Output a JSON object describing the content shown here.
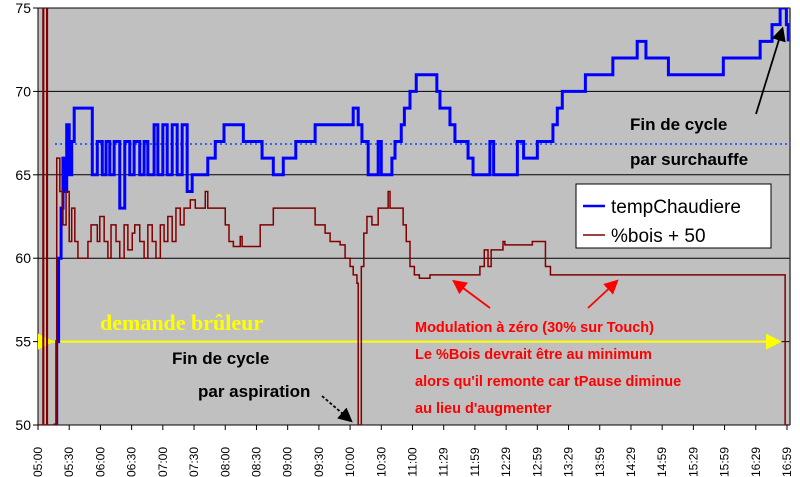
{
  "chart_data": {
    "type": "line",
    "title": "",
    "xlabel": "",
    "ylabel": "",
    "xlim": [
      5.0,
      17.0
    ],
    "ylim": [
      50,
      75
    ],
    "yticks": [
      50,
      55,
      60,
      65,
      70,
      75
    ],
    "xtick_labels": [
      "05:00",
      "05:30",
      "06:00",
      "06:30",
      "07:00",
      "07:30",
      "08:00",
      "08:30",
      "09:00",
      "09:30",
      "10:00",
      "10:30",
      "11:00",
      "11:29",
      "11:59",
      "12:29",
      "12:59",
      "13:29",
      "13:59",
      "14:29",
      "14:59",
      "15:29",
      "15:59",
      "16:29",
      "16:59"
    ],
    "grid": "horizontal",
    "legend_placement": "right",
    "colors": {
      "background": "#c0c0c0",
      "grid": "#000000",
      "temp": "#0000ff",
      "bois": "#800000",
      "setpoint": "#3366ff",
      "burner": "#ffff00",
      "note": "#ff0000"
    },
    "series": [
      {
        "name": "tempChaudiere",
        "color": "#0000ff",
        "points": [
          [
            5.25,
            50
          ],
          [
            5.3,
            55
          ],
          [
            5.33,
            60
          ],
          [
            5.37,
            63
          ],
          [
            5.4,
            66
          ],
          [
            5.43,
            64
          ],
          [
            5.46,
            68
          ],
          [
            5.5,
            65
          ],
          [
            5.54,
            67
          ],
          [
            5.58,
            69
          ],
          [
            5.74,
            69
          ],
          [
            5.87,
            65
          ],
          [
            5.95,
            67
          ],
          [
            6.03,
            65
          ],
          [
            6.09,
            67
          ],
          [
            6.15,
            65
          ],
          [
            6.22,
            67
          ],
          [
            6.31,
            63
          ],
          [
            6.39,
            67
          ],
          [
            6.47,
            65
          ],
          [
            6.54,
            67
          ],
          [
            6.63,
            65
          ],
          [
            6.7,
            67
          ],
          [
            6.76,
            65
          ],
          [
            6.86,
            68
          ],
          [
            6.92,
            65
          ],
          [
            7.0,
            68
          ],
          [
            7.07,
            65
          ],
          [
            7.15,
            68
          ],
          [
            7.23,
            65
          ],
          [
            7.31,
            68
          ],
          [
            7.39,
            64
          ],
          [
            7.47,
            65
          ],
          [
            7.72,
            66
          ],
          [
            7.84,
            67
          ],
          [
            7.98,
            68
          ],
          [
            8.29,
            67
          ],
          [
            8.59,
            66
          ],
          [
            8.77,
            65
          ],
          [
            8.93,
            66
          ],
          [
            9.13,
            67
          ],
          [
            9.44,
            68
          ],
          [
            10.05,
            69
          ],
          [
            10.13,
            68
          ],
          [
            10.19,
            67
          ],
          [
            10.29,
            65
          ],
          [
            10.45,
            67
          ],
          [
            10.5,
            65
          ],
          [
            10.67,
            66
          ],
          [
            10.72,
            67
          ],
          [
            10.82,
            68
          ],
          [
            10.87,
            69
          ],
          [
            10.96,
            70
          ],
          [
            11.06,
            71
          ],
          [
            11.39,
            70
          ],
          [
            11.44,
            69
          ],
          [
            11.6,
            68
          ],
          [
            11.68,
            67
          ],
          [
            11.89,
            66
          ],
          [
            11.97,
            65
          ],
          [
            12.24,
            67
          ],
          [
            12.3,
            65
          ],
          [
            12.68,
            67
          ],
          [
            12.78,
            66
          ],
          [
            13.0,
            67
          ],
          [
            13.06,
            67
          ],
          [
            13.25,
            68
          ],
          [
            13.32,
            69
          ],
          [
            13.4,
            70
          ],
          [
            13.77,
            71
          ],
          [
            14.21,
            72
          ],
          [
            14.6,
            73
          ],
          [
            14.74,
            72
          ],
          [
            15.1,
            71
          ],
          [
            15.98,
            72
          ],
          [
            16.57,
            73
          ],
          [
            16.76,
            74
          ],
          [
            16.89,
            75
          ],
          [
            16.99,
            74
          ],
          [
            17.02,
            73
          ]
        ]
      },
      {
        "name": "%bois + 50",
        "color": "#800000",
        "points": [
          [
            5.0,
            50
          ],
          [
            5.08,
            76
          ],
          [
            5.09,
            50
          ],
          [
            5.14,
            76
          ],
          [
            5.15,
            50
          ],
          [
            5.3,
            66
          ],
          [
            5.35,
            64
          ],
          [
            5.4,
            62
          ],
          [
            5.45,
            64
          ],
          [
            5.5,
            61
          ],
          [
            5.54,
            63
          ],
          [
            5.59,
            61
          ],
          [
            5.64,
            60
          ],
          [
            5.8,
            61
          ],
          [
            5.85,
            62
          ],
          [
            5.95,
            61
          ],
          [
            5.99,
            62.5
          ],
          [
            6.06,
            61
          ],
          [
            6.12,
            60
          ],
          [
            6.17,
            62
          ],
          [
            6.25,
            61
          ],
          [
            6.31,
            60
          ],
          [
            6.38,
            62
          ],
          [
            6.44,
            60.5
          ],
          [
            6.51,
            61.5
          ],
          [
            6.55,
            62
          ],
          [
            6.63,
            61
          ],
          [
            6.7,
            60
          ],
          [
            6.76,
            62
          ],
          [
            6.83,
            61
          ],
          [
            6.89,
            60
          ],
          [
            6.96,
            62
          ],
          [
            7.02,
            61
          ],
          [
            7.08,
            62.5
          ],
          [
            7.15,
            61
          ],
          [
            7.21,
            63
          ],
          [
            7.28,
            62
          ],
          [
            7.34,
            63
          ],
          [
            7.44,
            63.5
          ],
          [
            7.52,
            63
          ],
          [
            7.68,
            64
          ],
          [
            7.72,
            63
          ],
          [
            8.0,
            62
          ],
          [
            8.06,
            61
          ],
          [
            8.13,
            60.7
          ],
          [
            8.24,
            61.3
          ],
          [
            8.27,
            60.7
          ],
          [
            8.56,
            62
          ],
          [
            8.77,
            63
          ],
          [
            9.44,
            62
          ],
          [
            9.6,
            61.5
          ],
          [
            9.68,
            61
          ],
          [
            9.84,
            60.8
          ],
          [
            9.92,
            60
          ],
          [
            10.0,
            59.5
          ],
          [
            10.05,
            59
          ],
          [
            10.11,
            58.5
          ],
          [
            10.13,
            50
          ],
          [
            10.18,
            59.5
          ],
          [
            10.22,
            61.5
          ],
          [
            10.27,
            62.5
          ],
          [
            10.35,
            62
          ],
          [
            10.45,
            63
          ],
          [
            10.61,
            64
          ],
          [
            10.64,
            63
          ],
          [
            10.85,
            62
          ],
          [
            10.9,
            61
          ],
          [
            10.96,
            59.5
          ],
          [
            11.03,
            59
          ],
          [
            11.11,
            58.8
          ],
          [
            11.28,
            59
          ],
          [
            12.08,
            59.5
          ],
          [
            12.15,
            60.5
          ],
          [
            12.21,
            59.5
          ],
          [
            12.26,
            60.5
          ],
          [
            12.45,
            61
          ],
          [
            12.48,
            60.8
          ],
          [
            12.92,
            61
          ],
          [
            13.13,
            59.5
          ],
          [
            13.21,
            59
          ],
          [
            16.97,
            50
          ],
          [
            17.05,
            50
          ]
        ]
      }
    ],
    "reference_lines": [
      {
        "name": "setpoint",
        "value": 66.85,
        "color": "#3366ff",
        "style": "dotted"
      },
      {
        "name": "demande-bruleur",
        "value": 55,
        "color": "#ffff00",
        "style": "double-arrow"
      }
    ],
    "legend": [
      "tempChaudiere",
      "%bois + 50"
    ],
    "annotations": {
      "surchauffe": [
        "Fin de cycle",
        "par surchauffe"
      ],
      "aspiration": [
        "Fin de cycle",
        "par aspiration"
      ],
      "burner": "demande brûleur",
      "modulation": [
        "Modulation à zéro (30% sur Touch)",
        "Le %Bois devrait être au minimum",
        "alors qu'il remonte car tPause diminue",
        "au lieu d'augmenter"
      ]
    }
  }
}
